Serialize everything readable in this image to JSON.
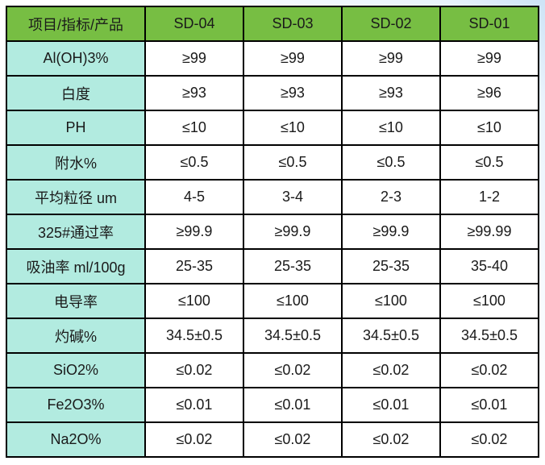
{
  "colors": {
    "header_green": "#77be43",
    "label_cyan": "#b2ebe0",
    "grid_border": "#000000",
    "page_tint_blue": "#cde3f6",
    "text": "#1a1a1a"
  },
  "chart_data": {
    "type": "table",
    "title": "",
    "columns": [
      "项目/指标/产品",
      "SD-04",
      "SD-03",
      "SD-02",
      "SD-01"
    ],
    "rows": [
      {
        "label": "Al(OH)3%",
        "values": [
          "≥99",
          "≥99",
          "≥99",
          "≥99"
        ]
      },
      {
        "label": "白度",
        "values": [
          "≥93",
          "≥93",
          "≥93",
          "≥96"
        ]
      },
      {
        "label": "PH",
        "values": [
          "≤10",
          "≤10",
          "≤10",
          "≤10"
        ]
      },
      {
        "label": "附水%",
        "values": [
          "≤0.5",
          "≤0.5",
          "≤0.5",
          "≤0.5"
        ]
      },
      {
        "label": "平均粒径 um",
        "values": [
          "4-5",
          "3-4",
          "2-3",
          "1-2"
        ]
      },
      {
        "label": "325#通过率",
        "values": [
          "≥99.9",
          "≥99.9",
          "≥99.9",
          "≥99.99"
        ]
      },
      {
        "label": "吸油率 ml/100g",
        "values": [
          "25-35",
          "25-35",
          "25-35",
          "35-40"
        ]
      },
      {
        "label": "电导率",
        "values": [
          "≤100",
          "≤100",
          "≤100",
          "≤100"
        ]
      },
      {
        "label": "灼碱%",
        "values": [
          "34.5±0.5",
          "34.5±0.5",
          "34.5±0.5",
          "34.5±0.5"
        ]
      },
      {
        "label": "SiO2%",
        "values": [
          "≤0.02",
          "≤0.02",
          "≤0.02",
          "≤0.02"
        ]
      },
      {
        "label": "Fe2O3%",
        "values": [
          "≤0.01",
          "≤0.01",
          "≤0.01",
          "≤0.01"
        ]
      },
      {
        "label": "Na2O%",
        "values": [
          "≤0.02",
          "≤0.02",
          "≤0.02",
          "≤0.02"
        ]
      }
    ]
  },
  "table": {
    "header": [
      "项目/指标/产品",
      "SD-04",
      "SD-03",
      "SD-02",
      "SD-01"
    ],
    "rows": [
      {
        "label": "Al(OH)3%",
        "values": [
          "≥99",
          "≥99",
          "≥99",
          "≥99"
        ]
      },
      {
        "label": "白度",
        "values": [
          "≥93",
          "≥93",
          "≥93",
          "≥96"
        ]
      },
      {
        "label": "PH",
        "values": [
          "≤10",
          "≤10",
          "≤10",
          "≤10"
        ]
      },
      {
        "label": "附水%",
        "values": [
          "≤0.5",
          "≤0.5",
          "≤0.5",
          "≤0.5"
        ]
      },
      {
        "label": "平均粒径 um",
        "values": [
          "4-5",
          "3-4",
          "2-3",
          "1-2"
        ]
      },
      {
        "label": "325#通过率",
        "values": [
          "≥99.9",
          "≥99.9",
          "≥99.9",
          "≥99.99"
        ]
      },
      {
        "label": "吸油率 ml/100g",
        "values": [
          "25-35",
          "25-35",
          "25-35",
          "35-40"
        ]
      },
      {
        "label": "电导率",
        "values": [
          "≤100",
          "≤100",
          "≤100",
          "≤100"
        ]
      },
      {
        "label": "灼碱%",
        "values": [
          "34.5±0.5",
          "34.5±0.5",
          "34.5±0.5",
          "34.5±0.5"
        ]
      },
      {
        "label": "SiO2%",
        "values": [
          "≤0.02",
          "≤0.02",
          "≤0.02",
          "≤0.02"
        ]
      },
      {
        "label": "Fe2O3%",
        "values": [
          "≤0.01",
          "≤0.01",
          "≤0.01",
          "≤0.01"
        ]
      },
      {
        "label": "Na2O%",
        "values": [
          "≤0.02",
          "≤0.02",
          "≤0.02",
          "≤0.02"
        ]
      }
    ]
  }
}
